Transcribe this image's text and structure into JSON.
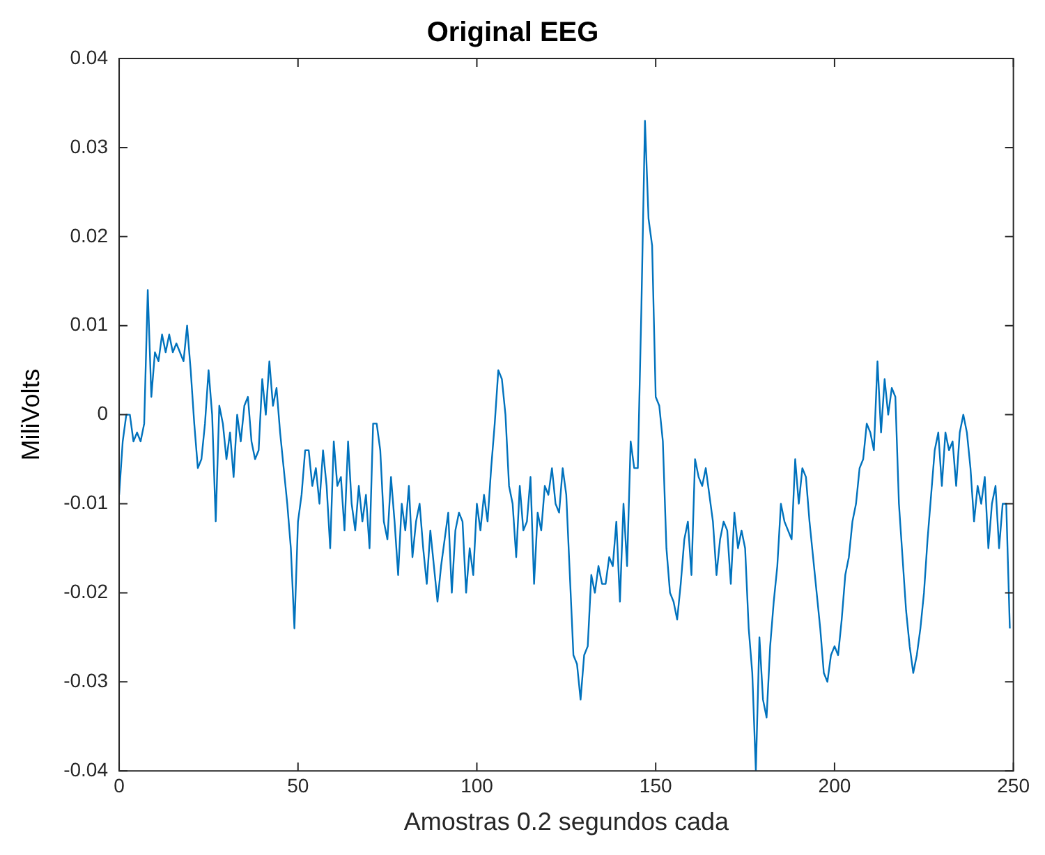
{
  "chart_data": {
    "type": "line",
    "title": "Original EEG",
    "xlabel": "Amostras 0.2 segundos cada",
    "ylabel": "MiliVolts",
    "x": [
      0,
      1,
      2,
      3,
      4,
      5,
      6,
      7,
      8,
      9,
      10,
      11,
      12,
      13,
      14,
      15,
      16,
      17,
      18,
      19,
      20,
      21,
      22,
      23,
      24,
      25,
      26,
      27,
      28,
      29,
      30,
      31,
      32,
      33,
      34,
      35,
      36,
      37,
      38,
      39,
      40,
      41,
      42,
      43,
      44,
      45,
      46,
      47,
      48,
      49,
      50,
      51,
      52,
      53,
      54,
      55,
      56,
      57,
      58,
      59,
      60,
      61,
      62,
      63,
      64,
      65,
      66,
      67,
      68,
      69,
      70,
      71,
      72,
      73,
      74,
      75,
      76,
      77,
      78,
      79,
      80,
      81,
      82,
      83,
      84,
      85,
      86,
      87,
      88,
      89,
      90,
      91,
      92,
      93,
      94,
      95,
      96,
      97,
      98,
      99,
      100,
      101,
      102,
      103,
      104,
      105,
      106,
      107,
      108,
      109,
      110,
      111,
      112,
      113,
      114,
      115,
      116,
      117,
      118,
      119,
      120,
      121,
      122,
      123,
      124,
      125,
      126,
      127,
      128,
      129,
      130,
      131,
      132,
      133,
      134,
      135,
      136,
      137,
      138,
      139,
      140,
      141,
      142,
      143,
      144,
      145,
      146,
      147,
      148,
      149,
      150,
      151,
      152,
      153,
      154,
      155,
      156,
      157,
      158,
      159,
      160,
      161,
      162,
      163,
      164,
      165,
      166,
      167,
      168,
      169,
      170,
      171,
      172,
      173,
      174,
      175,
      176,
      177,
      178,
      179,
      180,
      181,
      182,
      183,
      184,
      185,
      186,
      187,
      188,
      189,
      190,
      191,
      192,
      193,
      194,
      195,
      196,
      197,
      198,
      199,
      200,
      201,
      202,
      203,
      204,
      205,
      206,
      207,
      208,
      209,
      210,
      211,
      212,
      213,
      214,
      215,
      216,
      217,
      218,
      219,
      220,
      221,
      222,
      223,
      224,
      225,
      226,
      227,
      228,
      229,
      230,
      231,
      232,
      233,
      234,
      235,
      236,
      237,
      238,
      239,
      240,
      241,
      242,
      243,
      244,
      245,
      246,
      247,
      248,
      249
    ],
    "series": [
      {
        "color": "#0072bd",
        "values": [
          -0.009,
          -0.003,
          0,
          0,
          -0.003,
          -0.002,
          -0.003,
          -0.001,
          0.014,
          0.002,
          0.007,
          0.006,
          0.009,
          0.007,
          0.009,
          0.007,
          0.008,
          0.007,
          0.006,
          0.01,
          0.005,
          -0.001,
          -0.006,
          -0.005,
          -0.001,
          0.005,
          0,
          -0.012,
          0.001,
          -0.001,
          -0.005,
          -0.002,
          -0.007,
          0,
          -0.003,
          0.001,
          0.002,
          -0.003,
          -0.005,
          -0.004,
          0.004,
          0,
          0.006,
          0.001,
          0.003,
          -0.002,
          -0.006,
          -0.01,
          -0.015,
          -0.024,
          -0.012,
          -0.009,
          -0.004,
          -0.004,
          -0.008,
          -0.006,
          -0.01,
          -0.004,
          -0.008,
          -0.015,
          -0.003,
          -0.008,
          -0.007,
          -0.013,
          -0.003,
          -0.01,
          -0.013,
          -0.008,
          -0.012,
          -0.009,
          -0.015,
          -0.001,
          -0.001,
          -0.004,
          -0.012,
          -0.014,
          -0.007,
          -0.012,
          -0.018,
          -0.01,
          -0.013,
          -0.008,
          -0.016,
          -0.012,
          -0.01,
          -0.015,
          -0.019,
          -0.013,
          -0.017,
          -0.021,
          -0.017,
          -0.014,
          -0.011,
          -0.02,
          -0.013,
          -0.011,
          -0.012,
          -0.02,
          -0.015,
          -0.018,
          -0.01,
          -0.013,
          -0.009,
          -0.012,
          -0.006,
          -0.001,
          0.005,
          0.004,
          0,
          -0.008,
          -0.01,
          -0.016,
          -0.008,
          -0.013,
          -0.012,
          -0.007,
          -0.019,
          -0.011,
          -0.013,
          -0.008,
          -0.009,
          -0.006,
          -0.01,
          -0.011,
          -0.006,
          -0.009,
          -0.018,
          -0.027,
          -0.028,
          -0.032,
          -0.027,
          -0.026,
          -0.018,
          -0.02,
          -0.017,
          -0.019,
          -0.019,
          -0.016,
          -0.017,
          -0.012,
          -0.021,
          -0.01,
          -0.017,
          -0.003,
          -0.006,
          -0.006,
          0.012,
          0.033,
          0.022,
          0.019,
          0.002,
          0.001,
          -0.003,
          -0.015,
          -0.02,
          -0.021,
          -0.023,
          -0.019,
          -0.014,
          -0.012,
          -0.018,
          -0.005,
          -0.007,
          -0.008,
          -0.006,
          -0.009,
          -0.012,
          -0.018,
          -0.014,
          -0.012,
          -0.013,
          -0.019,
          -0.011,
          -0.015,
          -0.013,
          -0.015,
          -0.024,
          -0.029,
          -0.04,
          -0.025,
          -0.032,
          -0.034,
          -0.026,
          -0.021,
          -0.017,
          -0.01,
          -0.012,
          -0.013,
          -0.014,
          -0.005,
          -0.01,
          -0.006,
          -0.007,
          -0.012,
          -0.016,
          -0.02,
          -0.024,
          -0.029,
          -0.03,
          -0.027,
          -0.026,
          -0.027,
          -0.023,
          -0.018,
          -0.016,
          -0.012,
          -0.01,
          -0.006,
          -0.005,
          -0.001,
          -0.002,
          -0.004,
          0.006,
          -0.002,
          0.004,
          0,
          0.003,
          0.002,
          -0.01,
          -0.016,
          -0.022,
          -0.026,
          -0.029,
          -0.027,
          -0.024,
          -0.02,
          -0.014,
          -0.009,
          -0.004,
          -0.002,
          -0.008,
          -0.002,
          -0.004,
          -0.003,
          -0.008,
          -0.002,
          0,
          -0.002,
          -0.006,
          -0.012,
          -0.008,
          -0.01,
          -0.007,
          -0.015,
          -0.01,
          -0.008,
          -0.015,
          -0.01,
          -0.01,
          -0.024
        ]
      }
    ],
    "xlim": [
      0,
      250
    ],
    "xticks": [
      0,
      50,
      100,
      150,
      200,
      250
    ],
    "ylim": [
      -0.04,
      0.04
    ],
    "yticks": [
      -0.04,
      -0.03,
      -0.02,
      -0.01,
      0,
      0.01,
      0.02,
      0.03,
      0.04
    ],
    "grid": false,
    "legend": false,
    "marker": "none",
    "line_style": "solid"
  }
}
